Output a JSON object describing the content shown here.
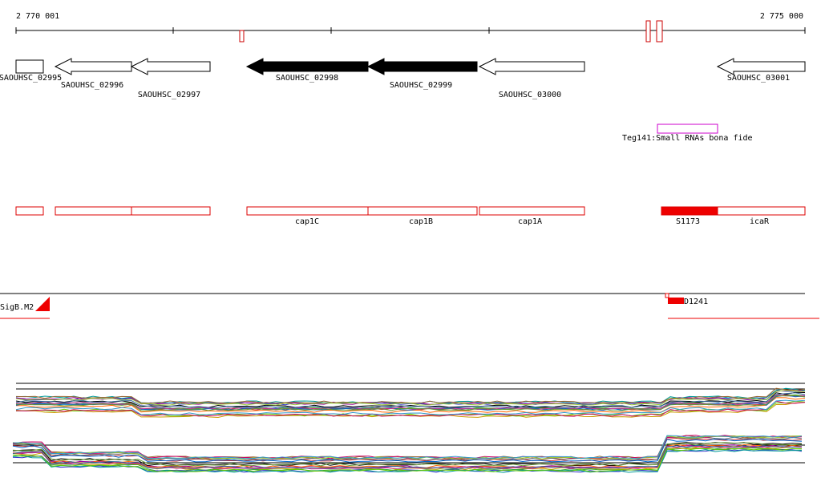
{
  "ruler": {
    "start": "2 770 001",
    "end": "2 775 000"
  },
  "genes": [
    {
      "label": "SAOUHSC_02995"
    },
    {
      "label": "SAOUHSC_02996"
    },
    {
      "label": "SAOUHSC_02997"
    },
    {
      "label": "SAOUHSC_02998"
    },
    {
      "label": "SAOUHSC_02999"
    },
    {
      "label": "SAOUHSC_03000"
    },
    {
      "label": "SAOUHSC_03001"
    }
  ],
  "small_rna": {
    "label": "Teg141:Small RNAs bona fide"
  },
  "features": [
    {
      "label": "cap1C"
    },
    {
      "label": "cap1B"
    },
    {
      "label": "cap1A"
    },
    {
      "label": "S1173"
    },
    {
      "label": "icaR"
    }
  ],
  "promoters": [
    {
      "label": "SigB.M2"
    },
    {
      "label": "D1241"
    }
  ]
}
